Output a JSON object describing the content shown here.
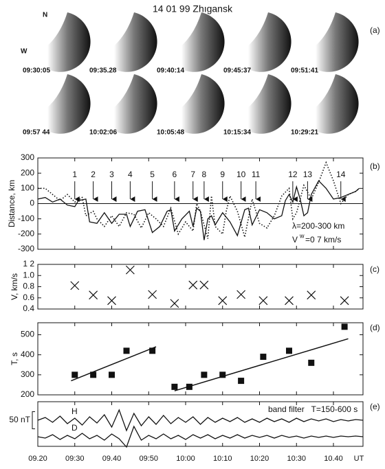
{
  "title": "14 01 99 Zhıgansk",
  "images": {
    "panel_label": "(a)",
    "compass_n": "N",
    "compass_w": "W",
    "times": [
      "09:30:05",
      "09:35.28",
      "09:40:14",
      "09:45:37",
      "09:51:41",
      "09:57 44",
      "10:02:06",
      "10:05:48",
      "10:15:34",
      "10:29:21"
    ]
  },
  "chart_data": [
    {
      "type": "line",
      "panel_label": "(b)",
      "ylabel": "Distance, km",
      "xlim": [
        "09:20",
        "10:48"
      ],
      "ylim": [
        -300,
        300
      ],
      "yticks": [
        -300,
        -200,
        -100,
        0,
        100,
        200,
        300
      ],
      "zero_line": true,
      "series": [
        {
          "style": "solid",
          "color": "#111",
          "x": [
            "09:20",
            "09:22",
            "09:24",
            "09:26",
            "09:28",
            "09:30",
            "09:31",
            "09:33",
            "09:34",
            "09:36",
            "09:38",
            "09:40",
            "09:42",
            "09:44",
            "09:45",
            "09:47",
            "09:49",
            "09:51",
            "09:53",
            "09:55",
            "09:56",
            "09:57",
            "09:59",
            "10:01",
            "10:02",
            "10:03",
            "10:04",
            "10:05",
            "10:06",
            "10:07",
            "10:08",
            "10:10",
            "10:12",
            "10:14",
            "10:16",
            "10:17",
            "10:18",
            "10:20",
            "10:22",
            "10:24",
            "10:26",
            "10:27",
            "10:28",
            "10:29",
            "10:30",
            "10:31",
            "10:32",
            "10:33",
            "10:34",
            "10:36",
            "10:38",
            "10:40",
            "10:42",
            "10:44",
            "10:46",
            "10:47"
          ],
          "values": [
            30,
            40,
            10,
            30,
            -10,
            -20,
            20,
            30,
            -120,
            -130,
            -60,
            -130,
            -70,
            -70,
            -150,
            -50,
            -40,
            -190,
            -150,
            -50,
            -40,
            -180,
            -100,
            -50,
            -150,
            -30,
            -50,
            -240,
            -100,
            -80,
            -140,
            -60,
            -120,
            -210,
            -40,
            -30,
            -140,
            -40,
            -60,
            -100,
            -80,
            20,
            60,
            10,
            110,
            30,
            -80,
            -60,
            60,
            150,
            100,
            30,
            40,
            60,
            80,
            100
          ]
        },
        {
          "style": "dotted",
          "color": "#111",
          "x": [
            "09:20",
            "09:22",
            "09:24",
            "09:26",
            "09:28",
            "09:30",
            "09:32",
            "09:33",
            "09:35",
            "09:36",
            "09:38",
            "09:40",
            "09:42",
            "09:44",
            "09:46",
            "09:48",
            "09:50",
            "09:52",
            "09:54",
            "09:56",
            "09:58",
            "10:00",
            "10:02",
            "10:03",
            "10:04",
            "10:06",
            "10:07",
            "10:08",
            "10:10",
            "10:11",
            "10:12",
            "10:14",
            "10:16",
            "10:18",
            "10:20",
            "10:22",
            "10:24",
            "10:26",
            "10:28",
            "10:29",
            "10:30",
            "10:32",
            "10:34",
            "10:36",
            "10:38",
            "10:40",
            "10:42",
            "10:44",
            "10:46",
            "10:47"
          ],
          "values": [
            100,
            100,
            60,
            20,
            60,
            10,
            40,
            -80,
            -50,
            -100,
            -150,
            -80,
            -150,
            -60,
            -70,
            -160,
            -60,
            -100,
            -150,
            -30,
            -200,
            -120,
            -180,
            0,
            -50,
            -230,
            50,
            -150,
            -200,
            -50,
            50,
            -50,
            -220,
            30,
            -130,
            -160,
            -80,
            50,
            100,
            -100,
            -60,
            120,
            30,
            140,
            270,
            150,
            0,
            60,
            80,
            100
          ]
        }
      ],
      "arrows": [
        {
          "label": "1",
          "x": "09:30"
        },
        {
          "label": "2",
          "x": "09:35"
        },
        {
          "label": "3",
          "x": "09:40"
        },
        {
          "label": "4",
          "x": "09:45"
        },
        {
          "label": "5",
          "x": "09:51"
        },
        {
          "label": "6",
          "x": "09:57"
        },
        {
          "label": "7",
          "x": "10:02"
        },
        {
          "label": "8",
          "x": "10:05"
        },
        {
          "label": "9",
          "x": "10:10"
        },
        {
          "label": "10",
          "x": "10:15"
        },
        {
          "label": "11",
          "x": "10:19"
        },
        {
          "label": "12",
          "x": "10:29"
        },
        {
          "label": "13",
          "x": "10:33"
        },
        {
          "label": "14",
          "x": "10:42"
        }
      ],
      "annotations": [
        "λ=200-300 km",
        "V",
        "w",
        "=0 7 km/s"
      ]
    },
    {
      "type": "scatter",
      "marker": "x",
      "panel_label": "(c)",
      "ylabel": "V, km/s",
      "xlim": [
        "09:20",
        "10:48"
      ],
      "ylim": [
        0.4,
        1.2
      ],
      "yticks": [
        0.4,
        0.6,
        0.8,
        {
          "value": 1,
          "label": "1.0"
        },
        {
          "value": 1.2,
          "label": "1 2"
        }
      ],
      "x": [
        "09:30",
        "09:35",
        "09:40",
        "09:45",
        "09:51",
        "09:57",
        "10:02",
        "10:05",
        "10:10",
        "10:15",
        "10:21",
        "10:28",
        "10:34",
        "10:43"
      ],
      "values": [
        0.82,
        0.65,
        0.55,
        1.1,
        0.66,
        0.5,
        0.83,
        0.83,
        0.55,
        0.66,
        0.55,
        0.55,
        0.65,
        0.55
      ]
    },
    {
      "type": "scatter",
      "marker": "square",
      "panel_label": "(d)",
      "ylabel": "T, s",
      "xlim": [
        "09:20",
        "10:48"
      ],
      "ylim": [
        200,
        560
      ],
      "yticks": [
        200,
        300,
        400,
        500
      ],
      "x": [
        "09:30",
        "09:35",
        "09:40",
        "09:44",
        "09:51",
        "09:57",
        "10:01",
        "10:05",
        "10:10",
        "10:15",
        "10:21",
        "10:28",
        "10:34",
        "10:43"
      ],
      "values": [
        300,
        300,
        300,
        420,
        420,
        240,
        240,
        300,
        300,
        270,
        390,
        420,
        360,
        540
      ],
      "fit_lines": [
        {
          "x": [
            "09:29",
            "09:52"
          ],
          "values": [
            270,
            440
          ]
        },
        {
          "x": [
            "09:57",
            "10:44"
          ],
          "values": [
            220,
            480
          ]
        }
      ]
    },
    {
      "type": "line",
      "panel_label": "(e)",
      "xlim": [
        "09:20",
        "10:48"
      ],
      "annotation": "band filter   T=150-600 s",
      "scale_bar": {
        "value": 50,
        "label": "50 nT"
      },
      "xticks": [
        {
          "value": "09:20",
          "label": "09.20"
        },
        "09:30",
        {
          "value": "09:40",
          "label": "09.40"
        },
        "09:50",
        "10:00",
        "10:10",
        "10:20",
        "10:30",
        {
          "value": "10:40",
          "label": "10.40"
        }
      ],
      "x_unit": "UT",
      "x": [
        "09:20",
        "09:22",
        "09:24",
        "09:26",
        "09:28",
        "09:30",
        "09:32",
        "09:34",
        "09:36",
        "09:38",
        "09:40",
        "09:42",
        "09:44",
        "09:46",
        "09:48",
        "09:50",
        "09:52",
        "09:54",
        "09:56",
        "09:58",
        "10:00",
        "10:02",
        "10:04",
        "10:06",
        "10:08",
        "10:10",
        "10:12",
        "10:14",
        "10:16",
        "10:18",
        "10:20",
        "10:22",
        "10:24",
        "10:26",
        "10:28",
        "10:30",
        "10:32",
        "10:34",
        "10:36",
        "10:38",
        "10:40",
        "10:42",
        "10:44",
        "10:46",
        "10:48"
      ],
      "series": [
        {
          "name": "H",
          "color": "#111",
          "values": [
            0,
            8,
            -6,
            12,
            -10,
            6,
            -14,
            10,
            -8,
            16,
            -20,
            30,
            -30,
            20,
            -16,
            10,
            -12,
            14,
            -10,
            8,
            -6,
            10,
            -12,
            8,
            -6,
            6,
            -4,
            8,
            -6,
            4,
            -6,
            6,
            -4,
            4,
            -6,
            6,
            -4,
            4,
            -2,
            4,
            -4,
            2,
            -2,
            2,
            0
          ]
        },
        {
          "name": "D",
          "color": "#111",
          "values": [
            0,
            -4,
            6,
            -8,
            4,
            -6,
            10,
            -6,
            4,
            -10,
            8,
            -6,
            -30,
            30,
            -10,
            4,
            -6,
            8,
            -6,
            4,
            -8,
            6,
            -4,
            6,
            -6,
            4,
            -4,
            6,
            -4,
            4,
            -2,
            4,
            -4,
            4,
            -2,
            2,
            -4,
            2,
            -2,
            2,
            -2,
            2,
            0,
            2,
            0
          ]
        }
      ]
    }
  ]
}
